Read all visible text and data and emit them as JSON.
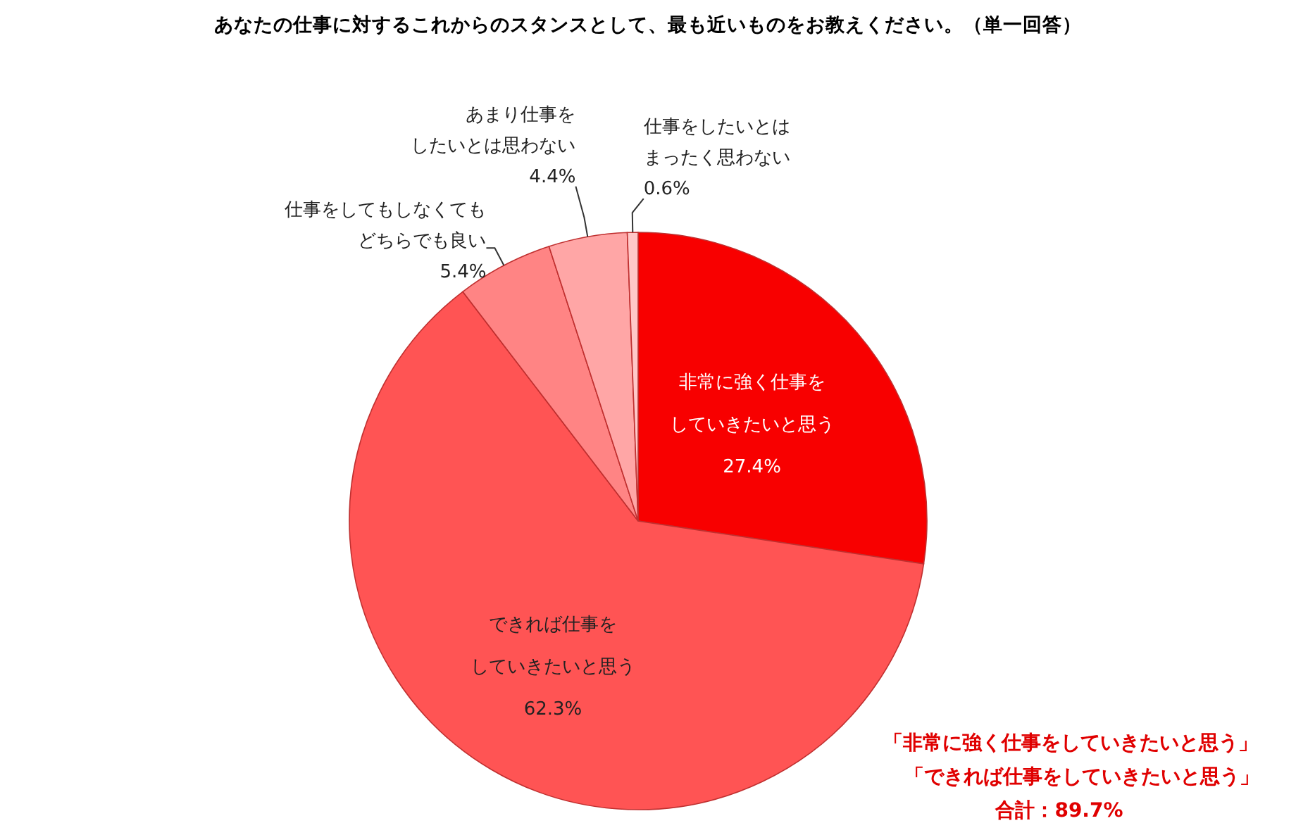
{
  "chart_data": {
    "type": "pie",
    "title": "あなたの仕事に対するこれからのスタンスとして、最も近いものをお教えください。（単一回答）",
    "categories": [
      "非常に強く仕事をしていきたいと思う",
      "できれば仕事をしていきたいと思う",
      "仕事をしてもしなくてもどちらでも良い",
      "あまり仕事をしたいとは思わない",
      "仕事をしたいとはまったく思わない"
    ],
    "values": [
      27.4,
      62.3,
      5.4,
      4.4,
      0.6
    ],
    "colors": [
      "#f80000",
      "#ff5454",
      "#ff8484",
      "#ffa6a6",
      "#ffc8c8"
    ],
    "value_labels": [
      "27.4%",
      "62.3%",
      "5.4%",
      "4.4%",
      "0.6%"
    ],
    "annotations": [
      "「非常に強く仕事をしていきたいと思う」",
      "「できれば仕事をしていきたいと思う」",
      "合計：89.7%"
    ]
  }
}
